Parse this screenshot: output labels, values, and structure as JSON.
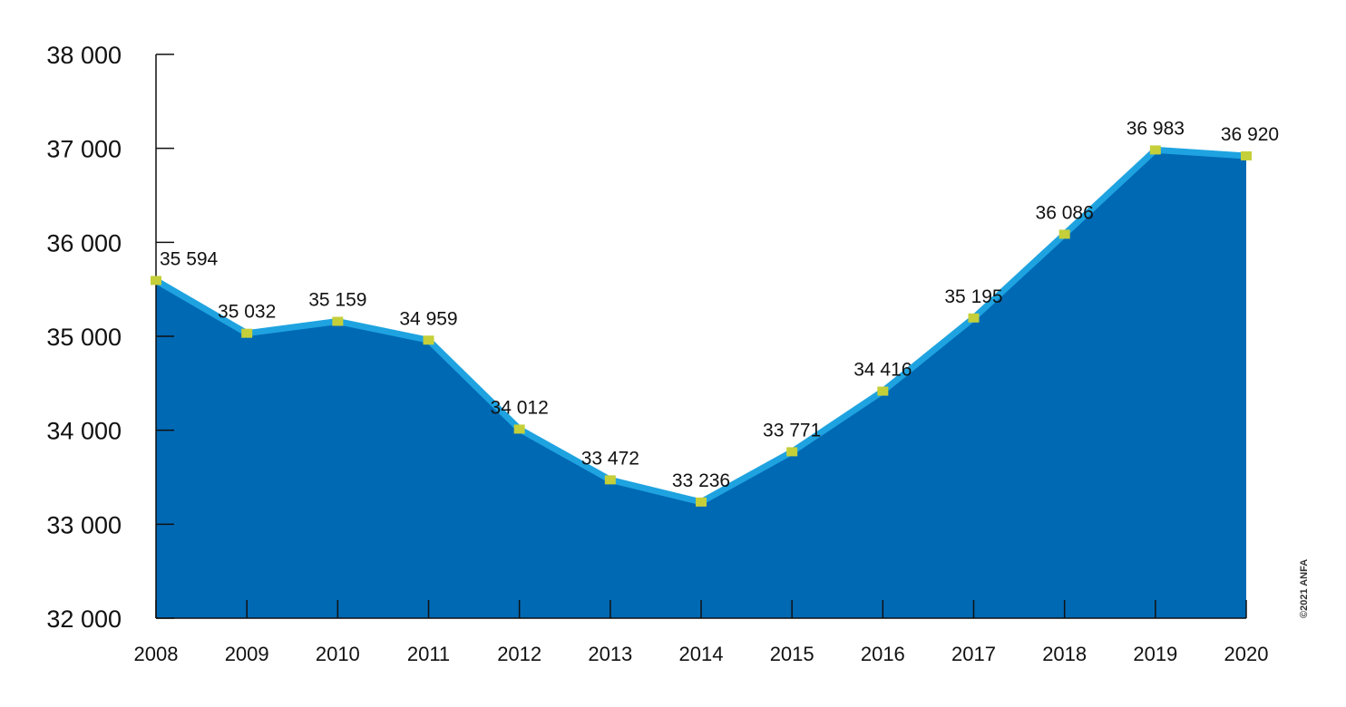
{
  "chart_data": {
    "type": "area",
    "title": "",
    "xlabel": "",
    "ylabel": "",
    "x": [
      "2008",
      "2009",
      "2010",
      "2011",
      "2012",
      "2013",
      "2014",
      "2015",
      "2016",
      "2017",
      "2018",
      "2019",
      "2020"
    ],
    "series": [
      {
        "values": [
          35594,
          35032,
          35159,
          34959,
          34012,
          33472,
          33236,
          33771,
          34416,
          35195,
          36086,
          36983,
          36920
        ],
        "value_labels": [
          "35 594",
          "35 032",
          "35 159",
          "34 959",
          "34 012",
          "33 472",
          "33 236",
          "33 771",
          "34 416",
          "35 195",
          "36 086",
          "36 983",
          "36 920"
        ]
      }
    ],
    "ylim": [
      32000,
      38000
    ],
    "yticks": [
      32000,
      33000,
      34000,
      35000,
      36000,
      37000,
      38000
    ],
    "ytick_labels": [
      "32 000",
      "33 000",
      "34 000",
      "35 000",
      "36 000",
      "37 000",
      "38 000"
    ],
    "grid": false,
    "legend": "none",
    "colors": {
      "area_fill": "#0069B4",
      "line": "#1EA3E0",
      "marker": "#C4CF3A",
      "last_label": "#E3001B",
      "axis": "#111111"
    },
    "credit": "©2021 ANFA"
  }
}
